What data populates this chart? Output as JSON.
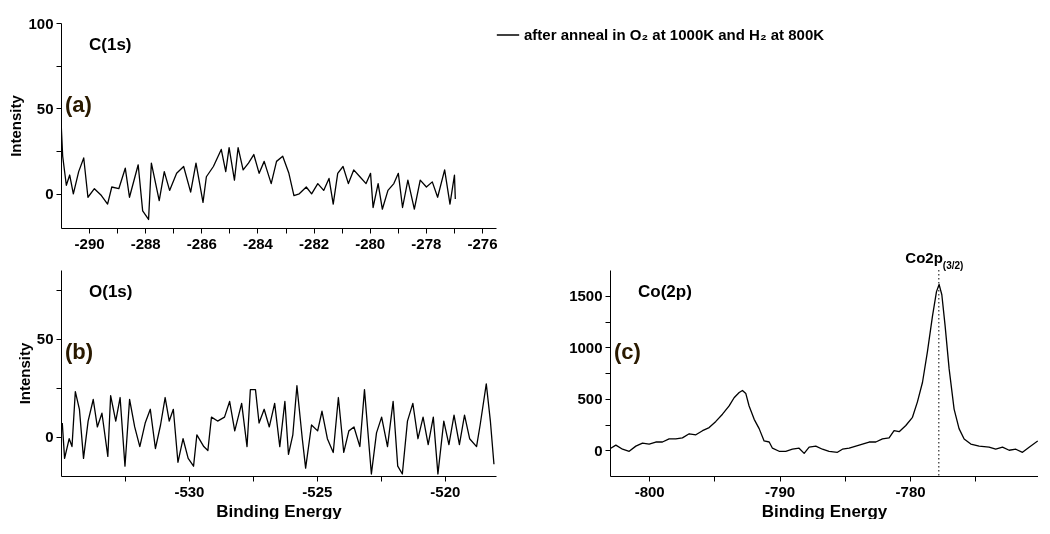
{
  "chart_data": [
    {
      "type": "line",
      "annotations": [
        "C(1s)",
        "(a)"
      ],
      "ylabel": "Intensity",
      "legend": "top right",
      "xlim": [
        -291,
        -275.5
      ],
      "xticks": [
        -290,
        {
          "value": -289,
          "label": null
        },
        -288,
        {
          "value": -287,
          "label": null
        },
        -286,
        {
          "value": -285,
          "label": null
        },
        -284,
        {
          "value": -283,
          "label": null
        },
        -282,
        {
          "value": -281,
          "label": null
        },
        -280,
        {
          "value": -279,
          "label": null
        },
        -278,
        {
          "value": -277,
          "label": null
        },
        -276
      ],
      "ylim": [
        -20,
        100
      ],
      "yticks": [
        0,
        {
          "value": 25,
          "label": null
        },
        50,
        {
          "value": 75,
          "label": null
        },
        100
      ],
      "x": [
        -291.0,
        -290.94,
        -290.81,
        -290.69,
        -290.56,
        -290.37,
        -290.19,
        -290.04,
        -289.81,
        -289.56,
        -289.34,
        -289.19,
        -288.94,
        -288.71,
        -288.56,
        -288.25,
        -288.09,
        -287.88,
        -287.78,
        -287.5,
        -287.32,
        -287.13,
        -286.88,
        -286.63,
        -286.38,
        -286.19,
        -285.94,
        -285.82,
        -285.57,
        -285.29,
        -285.13,
        -285.01,
        -284.82,
        -284.69,
        -284.51,
        -284.32,
        -284.13,
        -283.94,
        -283.76,
        -283.51,
        -283.32,
        -283.1,
        -282.88,
        -282.7,
        -282.51,
        -282.26,
        -282.07,
        -281.85,
        -281.64,
        -281.45,
        -281.3,
        -281.14,
        -280.95,
        -280.76,
        -280.57,
        -280.35,
        -280.13,
        -279.97,
        -279.88,
        -279.7,
        -279.55,
        -279.35,
        -279.14,
        -278.98,
        -278.83,
        -278.64,
        -278.41,
        -278.2,
        -277.98,
        -277.77,
        -277.58,
        -277.33,
        -277.14,
        -276.98,
        -276.95
      ],
      "series": [
        {
          "name": "after anneal in O₂ at 1000K and H₂ at 800K",
          "color": "#000000",
          "values": [
            43,
            22,
            5,
            11,
            0,
            13,
            21,
            -2,
            3,
            -1,
            -6,
            4,
            3,
            15,
            -2,
            17,
            -10,
            -15,
            18,
            -4,
            13,
            2,
            12,
            16,
            1,
            18,
            -5,
            10,
            16,
            26,
            13,
            27,
            8,
            27,
            14,
            18,
            23,
            12,
            19,
            6,
            19,
            22,
            12,
            -1,
            0,
            4,
            0,
            6,
            2,
            9,
            -6,
            12,
            16,
            6,
            14,
            10,
            6,
            12,
            -8,
            6,
            -9,
            2,
            6,
            12,
            -8,
            8,
            -9,
            8,
            4,
            7,
            -2,
            14,
            -6,
            11,
            -3
          ]
        }
      ]
    },
    {
      "type": "line",
      "annotations": [
        "O(1s)",
        "(b)"
      ],
      "ylabel": "Intensity",
      "xlabel": "Binding Energy",
      "xlim": [
        -535,
        -518
      ],
      "xticks": [
        {
          "value": -532.5,
          "label": null
        },
        -530,
        {
          "value": -527.5,
          "label": null
        },
        -525,
        {
          "value": -522.5,
          "label": null
        },
        -520
      ],
      "ylim": [
        -20,
        85
      ],
      "yticks": [
        0,
        {
          "value": 25,
          "label": null
        },
        50,
        {
          "value": 75,
          "label": null
        }
      ],
      "x": [
        -534.95,
        -534.86,
        -534.68,
        -534.57,
        -534.44,
        -534.28,
        -534.12,
        -533.94,
        -533.74,
        -533.58,
        -533.4,
        -533.17,
        -533.06,
        -532.86,
        -532.69,
        -532.5,
        -532.32,
        -532.12,
        -531.92,
        -531.71,
        -531.51,
        -531.31,
        -531.11,
        -530.93,
        -530.77,
        -530.61,
        -530.43,
        -530.23,
        -530.03,
        -529.82,
        -529.69,
        -529.42,
        -529.26,
        -529.12,
        -528.88,
        -528.61,
        -528.41,
        -528.21,
        -527.94,
        -527.73,
        -527.6,
        -527.4,
        -527.26,
        -527.06,
        -526.86,
        -526.65,
        -526.45,
        -526.25,
        -526.11,
        -525.94,
        -525.78,
        -525.57,
        -525.44,
        -525.21,
        -524.97,
        -524.8,
        -524.59,
        -524.36,
        -524.16,
        -523.95,
        -523.75,
        -523.55,
        -523.32,
        -523.14,
        -522.94,
        -522.87,
        -522.67,
        -522.47,
        -522.24,
        -522.02,
        -521.84,
        -521.66,
        -521.46,
        -521.25,
        -521.05,
        -520.85,
        -520.65,
        -520.45,
        -520.27,
        -520.04,
        -519.84,
        -519.64,
        -519.43,
        -519.23,
        -519.03,
        -518.76,
        -518.62,
        -518.38,
        -518.22,
        -518.08
      ],
      "series": [
        {
          "color": "#000000",
          "values": [
            7,
            -11,
            -1,
            -5,
            23,
            14,
            -11,
            8,
            19,
            5,
            12,
            -10,
            21,
            8,
            20,
            -15,
            19,
            5,
            -5,
            7,
            14,
            -6,
            6,
            20,
            8,
            14,
            -13,
            -1,
            -11,
            -15,
            1,
            -5,
            -7,
            10,
            8,
            10,
            18,
            3,
            17,
            -5,
            24,
            24,
            7,
            14,
            5,
            17,
            -5,
            18,
            -9,
            1,
            26,
            -1,
            -16,
            6,
            3,
            13,
            -1,
            -8,
            20,
            -8,
            3,
            5,
            -5,
            24,
            -8,
            -19,
            2,
            10,
            -5,
            18,
            -15,
            -19,
            8,
            17,
            -1,
            10,
            -4,
            10,
            -19,
            8,
            -4,
            11,
            -4,
            11,
            -1,
            -5,
            6,
            27,
            8,
            -14
          ]
        }
      ]
    },
    {
      "type": "line",
      "annotations": [
        "Co(2p)",
        "(c)"
      ],
      "xlabel": "Binding Energy",
      "xlim": [
        -803,
        -770.2
      ],
      "xticks": [
        -800,
        {
          "value": -795,
          "label": null
        },
        -790,
        {
          "value": -785,
          "label": null
        },
        -780,
        {
          "value": -775,
          "label": null
        }
      ],
      "ylim": [
        -250,
        1750
      ],
      "yticks": [
        0,
        {
          "value": 250,
          "label": null
        },
        500,
        {
          "value": 750,
          "label": null
        },
        1000,
        {
          "value": 1250,
          "label": null
        },
        1500
      ],
      "ref_lines": [
        {
          "axis": "x",
          "value": -777.8,
          "label": "Co2p$_{(3/2)}$",
          "line_style": "dotted"
        }
      ],
      "x": [
        -802.94,
        -802.55,
        -802.04,
        -801.53,
        -801.02,
        -800.51,
        -800,
        -799.49,
        -798.98,
        -798.47,
        -797.96,
        -797.45,
        -796.93,
        -796.42,
        -795.91,
        -795.4,
        -794.89,
        -794.38,
        -793.87,
        -793.49,
        -793.1,
        -792.85,
        -792.59,
        -792.34,
        -791.95,
        -791.57,
        -791.19,
        -790.8,
        -790.55,
        -790.04,
        -789.53,
        -789.02,
        -788.51,
        -788.12,
        -787.74,
        -787.23,
        -786.72,
        -786.21,
        -785.57,
        -785.19,
        -784.67,
        -784.16,
        -783.65,
        -783.14,
        -782.63,
        -782.12,
        -781.61,
        -781.23,
        -780.84,
        -780.33,
        -779.82,
        -779.44,
        -779.05,
        -778.67,
        -778.29,
        -777.98,
        -777.78,
        -777.57,
        -777.32,
        -777.01,
        -776.63,
        -776.25,
        -775.86,
        -775.35,
        -774.71,
        -773.95,
        -773.44,
        -772.92,
        -772.41,
        -771.9,
        -771.39,
        -770.88,
        -770.22
      ],
      "series": [
        {
          "color": "#000000",
          "values": [
            20,
            50,
            10,
            -10,
            40,
            70,
            60,
            80,
            80,
            110,
            110,
            120,
            160,
            150,
            190,
            220,
            280,
            350,
            430,
            510,
            560,
            580,
            550,
            430,
            300,
            210,
            90,
            80,
            20,
            -10,
            -10,
            10,
            20,
            -30,
            30,
            40,
            10,
            -10,
            -20,
            10,
            20,
            40,
            60,
            80,
            80,
            110,
            120,
            190,
            180,
            240,
            320,
            470,
            660,
            960,
            1300,
            1540,
            1610,
            1510,
            1210,
            790,
            400,
            210,
            110,
            60,
            40,
            30,
            10,
            30,
            0,
            10,
            -20,
            30,
            90
          ]
        }
      ]
    }
  ]
}
